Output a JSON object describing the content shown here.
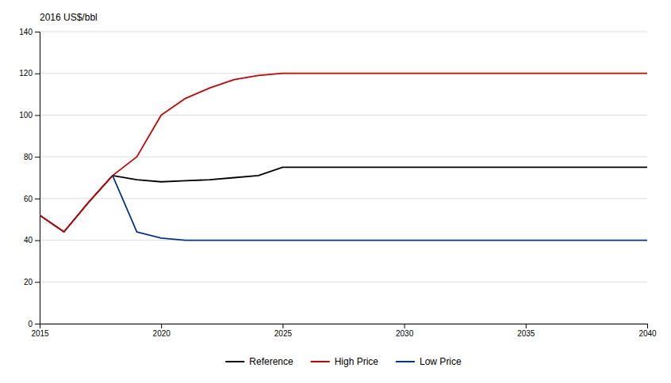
{
  "chart_data": {
    "type": "line",
    "ylabel": "2016 US$/bbl",
    "xlim": [
      2015,
      2040
    ],
    "ylim": [
      0,
      140
    ],
    "xticks": [
      2015,
      2020,
      2025,
      2030,
      2035,
      2040
    ],
    "yticks": [
      0,
      20,
      40,
      60,
      80,
      100,
      120,
      140
    ],
    "grid": true,
    "legend": "bottom",
    "series": [
      {
        "name": "Reference",
        "color": "#000000",
        "x": [
          2015,
          2016,
          2017,
          2018,
          2019,
          2020,
          2021,
          2022,
          2023,
          2024,
          2025,
          2026,
          2027,
          2028,
          2029,
          2030,
          2031,
          2032,
          2033,
          2034,
          2035,
          2036,
          2037,
          2038,
          2039,
          2040
        ],
        "values": [
          52,
          44,
          58,
          71,
          69,
          68,
          68.5,
          69,
          70,
          71,
          75,
          75,
          75,
          75,
          75,
          75,
          75,
          75,
          75,
          75,
          75,
          75,
          75,
          75,
          75,
          75
        ]
      },
      {
        "name": "High Price",
        "color": "#cc0000",
        "x": [
          2015,
          2016,
          2017,
          2018,
          2019,
          2020,
          2021,
          2022,
          2023,
          2024,
          2025,
          2026,
          2027,
          2028,
          2029,
          2030,
          2031,
          2032,
          2033,
          2034,
          2035,
          2036,
          2037,
          2038,
          2039,
          2040
        ],
        "values": [
          52,
          44,
          58,
          71,
          80,
          100,
          108,
          113,
          117,
          119,
          120,
          120,
          120,
          120,
          120,
          120,
          120,
          120,
          120,
          120,
          120,
          120,
          120,
          120,
          120,
          120
        ]
      },
      {
        "name": "Low Price",
        "color": "#003399",
        "x": [
          2018,
          2019,
          2020,
          2021,
          2022,
          2023,
          2024,
          2025,
          2026,
          2027,
          2028,
          2029,
          2030,
          2031,
          2032,
          2033,
          2034,
          2035,
          2036,
          2037,
          2038,
          2039,
          2040
        ],
        "values": [
          71,
          44,
          41,
          40,
          40,
          40,
          40,
          40,
          40,
          40,
          40,
          40,
          40,
          40,
          40,
          40,
          40,
          40,
          40,
          40,
          40,
          40,
          40
        ]
      }
    ]
  }
}
